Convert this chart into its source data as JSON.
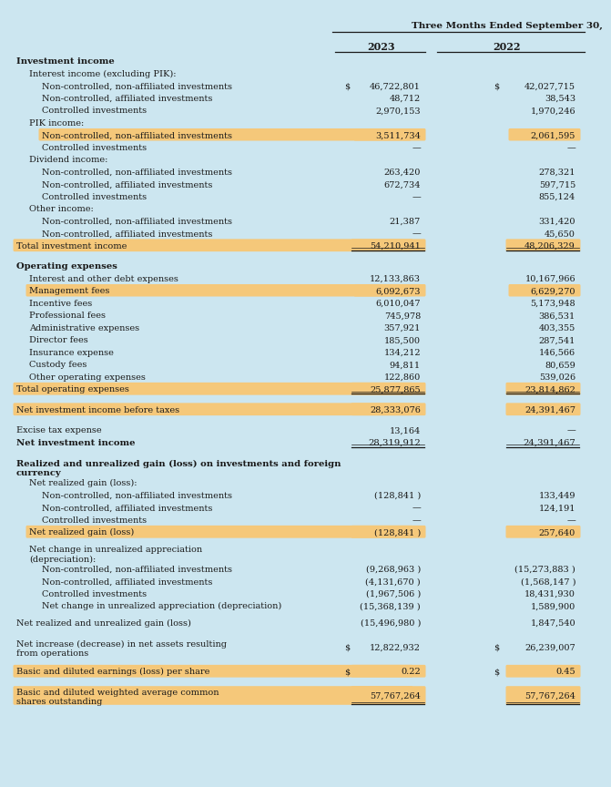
{
  "title": "Three Months Ended September 30,",
  "col2023": "2023",
  "col2022": "2022",
  "bg_color": "#cce6f0",
  "highlight_color": "#f5c87a",
  "rows": [
    {
      "label": "Investment income",
      "v2023": "",
      "v2022": "",
      "style": "section_header",
      "indent": 0
    },
    {
      "label": "Interest income (excluding PIK):",
      "v2023": "",
      "v2022": "",
      "style": "normal",
      "indent": 1
    },
    {
      "label": "Non-controlled, non-affiliated investments",
      "v2023": "46,722,801",
      "v2022": "42,027,715",
      "style": "normal_alt",
      "indent": 2,
      "dollar2023": true,
      "dollar2022": true
    },
    {
      "label": "Non-controlled, affiliated investments",
      "v2023": "48,712",
      "v2022": "38,543",
      "style": "normal",
      "indent": 2
    },
    {
      "label": "Controlled investments",
      "v2023": "2,970,153",
      "v2022": "1,970,246",
      "style": "normal_alt",
      "indent": 2
    },
    {
      "label": "PIK income:",
      "v2023": "",
      "v2022": "",
      "style": "normal",
      "indent": 1
    },
    {
      "label": "Non-controlled, non-affiliated investments",
      "v2023": "3,511,734",
      "v2022": "2,061,595",
      "style": "highlight",
      "indent": 2
    },
    {
      "label": "Controlled investments",
      "v2023": "—",
      "v2022": "—",
      "style": "normal",
      "indent": 2
    },
    {
      "label": "Dividend income:",
      "v2023": "",
      "v2022": "",
      "style": "normal_alt",
      "indent": 1
    },
    {
      "label": "Non-controlled, non-affiliated investments",
      "v2023": "263,420",
      "v2022": "278,321",
      "style": "normal",
      "indent": 2
    },
    {
      "label": "Non-controlled, affiliated investments",
      "v2023": "672,734",
      "v2022": "597,715",
      "style": "normal_alt",
      "indent": 2
    },
    {
      "label": "Controlled investments",
      "v2023": "—",
      "v2022": "855,124",
      "style": "normal",
      "indent": 2
    },
    {
      "label": "Other income:",
      "v2023": "",
      "v2022": "",
      "style": "normal_alt",
      "indent": 1
    },
    {
      "label": "Non-controlled, non-affiliated investments",
      "v2023": "21,387",
      "v2022": "331,420",
      "style": "normal",
      "indent": 2
    },
    {
      "label": "Non-controlled, affiliated investments",
      "v2023": "—",
      "v2022": "45,650",
      "style": "normal_alt",
      "indent": 2
    },
    {
      "label": "Total investment income",
      "v2023": "54,210,941",
      "v2022": "48,206,329",
      "style": "highlight_total",
      "indent": 0,
      "underline": true
    },
    {
      "label": "",
      "v2023": "",
      "v2022": "",
      "style": "spacer_large",
      "indent": 0
    },
    {
      "label": "Operating expenses",
      "v2023": "",
      "v2022": "",
      "style": "section_header",
      "indent": 0
    },
    {
      "label": "Interest and other debt expenses",
      "v2023": "12,133,863",
      "v2022": "10,167,966",
      "style": "normal_alt",
      "indent": 1
    },
    {
      "label": "Management fees",
      "v2023": "6,092,673",
      "v2022": "6,629,270",
      "style": "highlight",
      "indent": 1
    },
    {
      "label": "Incentive fees",
      "v2023": "6,010,047",
      "v2022": "5,173,948",
      "style": "normal_alt",
      "indent": 1
    },
    {
      "label": "Professional fees",
      "v2023": "745,978",
      "v2022": "386,531",
      "style": "normal",
      "indent": 1
    },
    {
      "label": "Administrative expenses",
      "v2023": "357,921",
      "v2022": "403,355",
      "style": "normal_alt",
      "indent": 1
    },
    {
      "label": "Director fees",
      "v2023": "185,500",
      "v2022": "287,541",
      "style": "normal",
      "indent": 1
    },
    {
      "label": "Insurance expense",
      "v2023": "134,212",
      "v2022": "146,566",
      "style": "normal_alt",
      "indent": 1
    },
    {
      "label": "Custody fees",
      "v2023": "94,811",
      "v2022": "80,659",
      "style": "normal",
      "indent": 1
    },
    {
      "label": "Other operating expenses",
      "v2023": "122,860",
      "v2022": "539,026",
      "style": "normal_alt",
      "indent": 1
    },
    {
      "label": "Total operating expenses",
      "v2023": "25,877,865",
      "v2022": "23,814,862",
      "style": "highlight_total",
      "indent": 0,
      "underline": true
    },
    {
      "label": "",
      "v2023": "",
      "v2022": "",
      "style": "spacer_large",
      "indent": 0
    },
    {
      "label": "Net investment income before taxes",
      "v2023": "28,333,076",
      "v2022": "24,391,467",
      "style": "highlight_total",
      "indent": 0
    },
    {
      "label": "",
      "v2023": "",
      "v2022": "",
      "style": "spacer_large",
      "indent": 0
    },
    {
      "label": "Excise tax expense",
      "v2023": "13,164",
      "v2022": "—",
      "style": "normal",
      "indent": 0
    },
    {
      "label": "Net investment income",
      "v2023": "28,319,912",
      "v2022": "24,391,467",
      "style": "bold_total",
      "indent": 0,
      "underline": true
    },
    {
      "label": "",
      "v2023": "",
      "v2022": "",
      "style": "spacer_large",
      "indent": 0
    },
    {
      "label": "Realized and unrealized gain (loss) on investments and foreign\ncurrency",
      "v2023": "",
      "v2022": "",
      "style": "section_header",
      "indent": 0,
      "multiline": true
    },
    {
      "label": "Net realized gain (loss):",
      "v2023": "",
      "v2022": "",
      "style": "normal_alt",
      "indent": 1
    },
    {
      "label": "Non-controlled, non-affiliated investments",
      "v2023": "(128,841 )",
      "v2022": "133,449",
      "style": "normal",
      "indent": 2
    },
    {
      "label": "Non-controlled, affiliated investments",
      "v2023": "—",
      "v2022": "124,191",
      "style": "normal_alt",
      "indent": 2
    },
    {
      "label": "Controlled investments",
      "v2023": "—",
      "v2022": "—",
      "style": "normal",
      "indent": 2
    },
    {
      "label": "Net realized gain (loss)",
      "v2023": "(128,841 )",
      "v2022": "257,640",
      "style": "highlight_total",
      "indent": 1
    },
    {
      "label": "",
      "v2023": "",
      "v2022": "",
      "style": "spacer_small",
      "indent": 0
    },
    {
      "label": "Net change in unrealized appreciation\n(depreciation):",
      "v2023": "",
      "v2022": "",
      "style": "normal_alt",
      "indent": 1,
      "multiline": true
    },
    {
      "label": "Non-controlled, non-affiliated investments",
      "v2023": "(9,268,963 )",
      "v2022": "(15,273,883 )",
      "style": "normal",
      "indent": 2
    },
    {
      "label": "Non-controlled, affiliated investments",
      "v2023": "(4,131,670 )",
      "v2022": "(1,568,147 )",
      "style": "normal_alt",
      "indent": 2
    },
    {
      "label": "Controlled investments",
      "v2023": "(1,967,506 )",
      "v2022": "18,431,930",
      "style": "normal",
      "indent": 2
    },
    {
      "label": "Net change in unrealized appreciation (depreciation)",
      "v2023": "(15,368,139 )",
      "v2022": "1,589,900",
      "style": "normal_alt",
      "indent": 2
    },
    {
      "label": "",
      "v2023": "",
      "v2022": "",
      "style": "spacer_small",
      "indent": 0
    },
    {
      "label": "Net realized and unrealized gain (loss)",
      "v2023": "(15,496,980 )",
      "v2022": "1,847,540",
      "style": "normal",
      "indent": 0
    },
    {
      "label": "",
      "v2023": "",
      "v2022": "",
      "style": "spacer_large",
      "indent": 0
    },
    {
      "label": "Net increase (decrease) in net assets resulting\nfrom operations",
      "v2023": "12,822,932",
      "v2022": "26,239,007",
      "style": "normal_alt",
      "indent": 0,
      "dollar2023": true,
      "dollar2022": true,
      "multiline": true
    },
    {
      "label": "",
      "v2023": "",
      "v2022": "",
      "style": "spacer_large",
      "indent": 0
    },
    {
      "label": "Basic and diluted earnings (loss) per share",
      "v2023": "0.22",
      "v2022": "0.45",
      "style": "highlight_total",
      "indent": 0,
      "dollar2023": true,
      "dollar2022": true
    },
    {
      "label": "",
      "v2023": "",
      "v2022": "",
      "style": "spacer_large",
      "indent": 0
    },
    {
      "label": "Basic and diluted weighted average common\nshares outstanding",
      "v2023": "57,767,264",
      "v2022": "57,767,264",
      "style": "highlight_total",
      "indent": 0,
      "underline": true,
      "multiline": true
    }
  ]
}
